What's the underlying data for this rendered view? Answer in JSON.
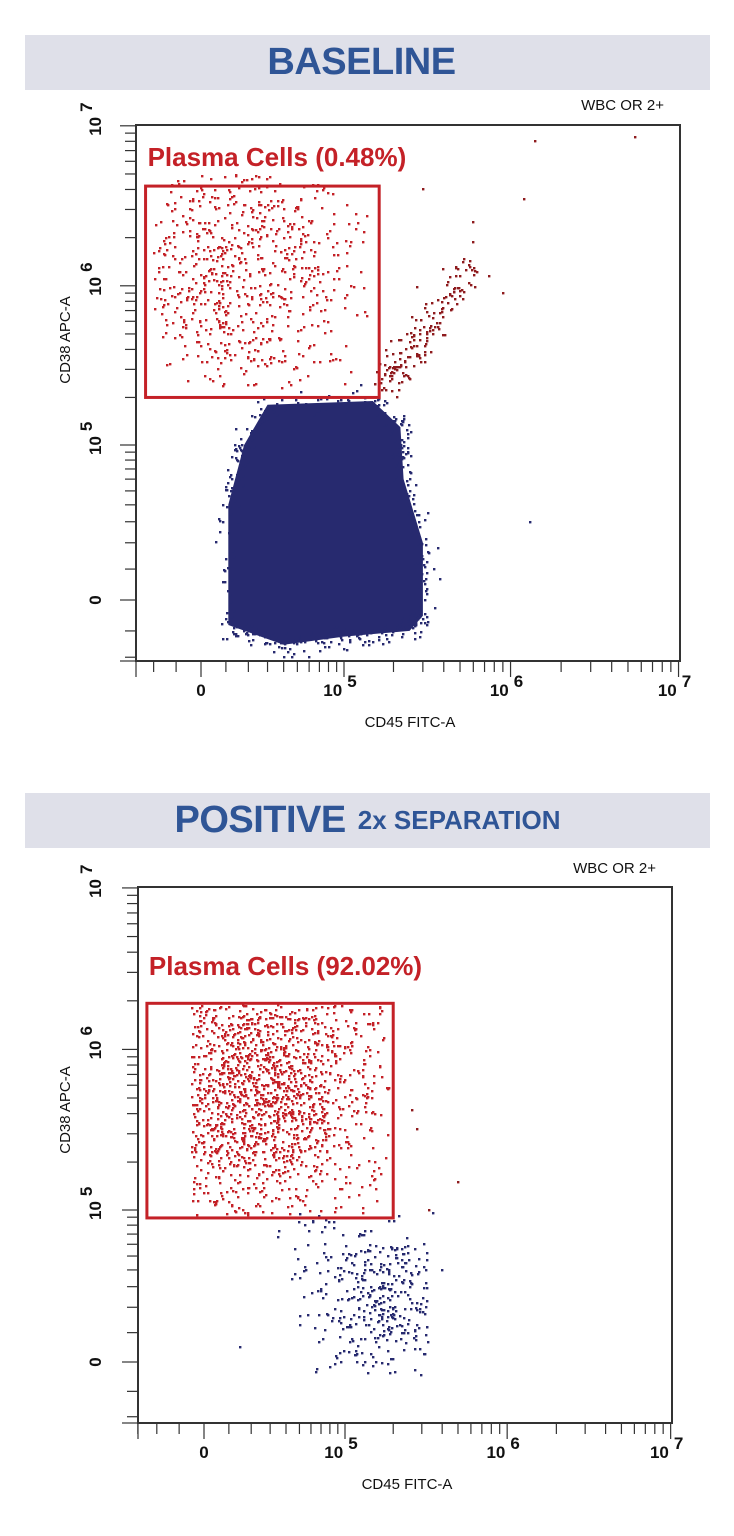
{
  "chart_data": [
    {
      "type": "scatter",
      "title": "BASELINE",
      "title_suffix": "",
      "corner_label": "WBC OR 2+",
      "xlabel": "CD45 FITC-A",
      "ylabel": "CD38 APC-A",
      "x_scale": "biexponential",
      "y_scale": "biexponential",
      "xlim": [
        -29000,
        10000000
      ],
      "ylim": [
        -22000,
        10000000
      ],
      "grid": false,
      "x_ticks": [
        {
          "value": 0,
          "base": "0",
          "exp": ""
        },
        {
          "value": 100000,
          "base": "10",
          "exp": "5"
        },
        {
          "value": 1000000,
          "base": "10",
          "exp": "6"
        },
        {
          "value": 10000000,
          "base": "10",
          "exp": "7"
        }
      ],
      "y_ticks": [
        {
          "value": 0,
          "base": "0",
          "exp": ""
        },
        {
          "value": 100000,
          "base": "10",
          "exp": "5"
        },
        {
          "value": 1000000,
          "base": "10",
          "exp": "6"
        },
        {
          "value": 10000000,
          "base": "10",
          "exp": "7"
        }
      ],
      "gate": {
        "label": "Plasma Cells (0.48%)",
        "x": [
          -24000,
          164000
        ],
        "y": [
          200000,
          4200000
        ],
        "color": "#c42127"
      },
      "density_region": {
        "color": "#272a6f",
        "outline": [
          [
            11000,
            -8000
          ],
          [
            11000,
            40000
          ],
          [
            18000,
            100000
          ],
          [
            30000,
            180000
          ],
          [
            150000,
            190000
          ],
          [
            220000,
            130000
          ],
          [
            230000,
            60000
          ],
          [
            300000,
            20000
          ],
          [
            300000,
            -5000
          ],
          [
            250000,
            -10000
          ],
          [
            100000,
            -12000
          ],
          [
            40000,
            -15000
          ]
        ]
      },
      "populations": [
        {
          "kind": "cloud",
          "color": "#c42127",
          "count": 700,
          "x": [
            -20000,
            140000
          ],
          "y": [
            220000,
            5000000
          ],
          "peak": [
            16000,
            1300000
          ]
        },
        {
          "kind": "streak",
          "color": "#8e1b1e",
          "count": 170,
          "from": [
            180000,
            240000
          ],
          "to": [
            600000,
            1400000
          ]
        },
        {
          "kind": "edge",
          "color": "#272a6f",
          "count": 450
        }
      ],
      "outliers": [
        {
          "color": "#8e1b1e",
          "points": [
            [
              1400000,
              8000000
            ],
            [
              5500000,
              8500000
            ],
            [
              1200000,
              3500000
            ],
            [
              300000,
              4000000
            ],
            [
              900000,
              900000
            ],
            [
              600000,
              2500000
            ]
          ]
        },
        {
          "color": "#272a6f",
          "points": [
            [
              1300000,
              30000
            ],
            [
              40000,
              -20000
            ],
            [
              60000,
              -20000
            ]
          ]
        }
      ]
    },
    {
      "type": "scatter",
      "title": "POSITIVE",
      "title_suffix": "2x SEPARATION",
      "corner_label": "WBC OR 2+",
      "xlabel": "CD45 FITC-A",
      "ylabel": "CD38 APC-A",
      "x_scale": "biexponential",
      "y_scale": "biexponential",
      "xlim": [
        -30000,
        10000000
      ],
      "ylim": [
        -23000,
        10000000
      ],
      "grid": false,
      "x_ticks": [
        {
          "value": 0,
          "base": "0",
          "exp": ""
        },
        {
          "value": 100000,
          "base": "10",
          "exp": "5"
        },
        {
          "value": 1000000,
          "base": "10",
          "exp": "6"
        },
        {
          "value": 10000000,
          "base": "10",
          "exp": "7"
        }
      ],
      "y_ticks": [
        {
          "value": 0,
          "base": "0",
          "exp": ""
        },
        {
          "value": 100000,
          "base": "10",
          "exp": "5"
        },
        {
          "value": 1000000,
          "base": "10",
          "exp": "6"
        },
        {
          "value": 10000000,
          "base": "10",
          "exp": "7"
        }
      ],
      "gate": {
        "label": "Plasma Cells (92.02%)",
        "x": [
          -25000,
          200000
        ],
        "y": [
          89000,
          1930000
        ],
        "color": "#c42127"
      },
      "density_region": null,
      "populations": [
        {
          "kind": "cloud",
          "color": "#c42127",
          "count": 1500,
          "x": [
            -5000,
            190000
          ],
          "y": [
            92000,
            1900000
          ],
          "peak": [
            22000,
            590000
          ]
        },
        {
          "kind": "cloud",
          "color": "#272a6f",
          "count": 320,
          "x": [
            50000,
            330000
          ],
          "y": [
            -5000,
            60000
          ],
          "peak": [
            160000,
            22000
          ]
        },
        {
          "kind": "cloud",
          "color": "#272a6f",
          "count": 55,
          "x": [
            30000,
            330000
          ],
          "y": [
            30000,
            95000
          ],
          "peak": [
            120000,
            65000
          ]
        }
      ],
      "outliers": [
        {
          "color": "#8e1b1e",
          "points": [
            [
              260000,
              420000
            ],
            [
              280000,
              320000
            ],
            [
              500000,
              150000
            ],
            [
              330000,
              100000
            ]
          ]
        },
        {
          "color": "#272a6f",
          "points": [
            [
              15000,
              5000
            ],
            [
              350000,
              95000
            ],
            [
              400000,
              40000
            ]
          ]
        }
      ]
    }
  ]
}
